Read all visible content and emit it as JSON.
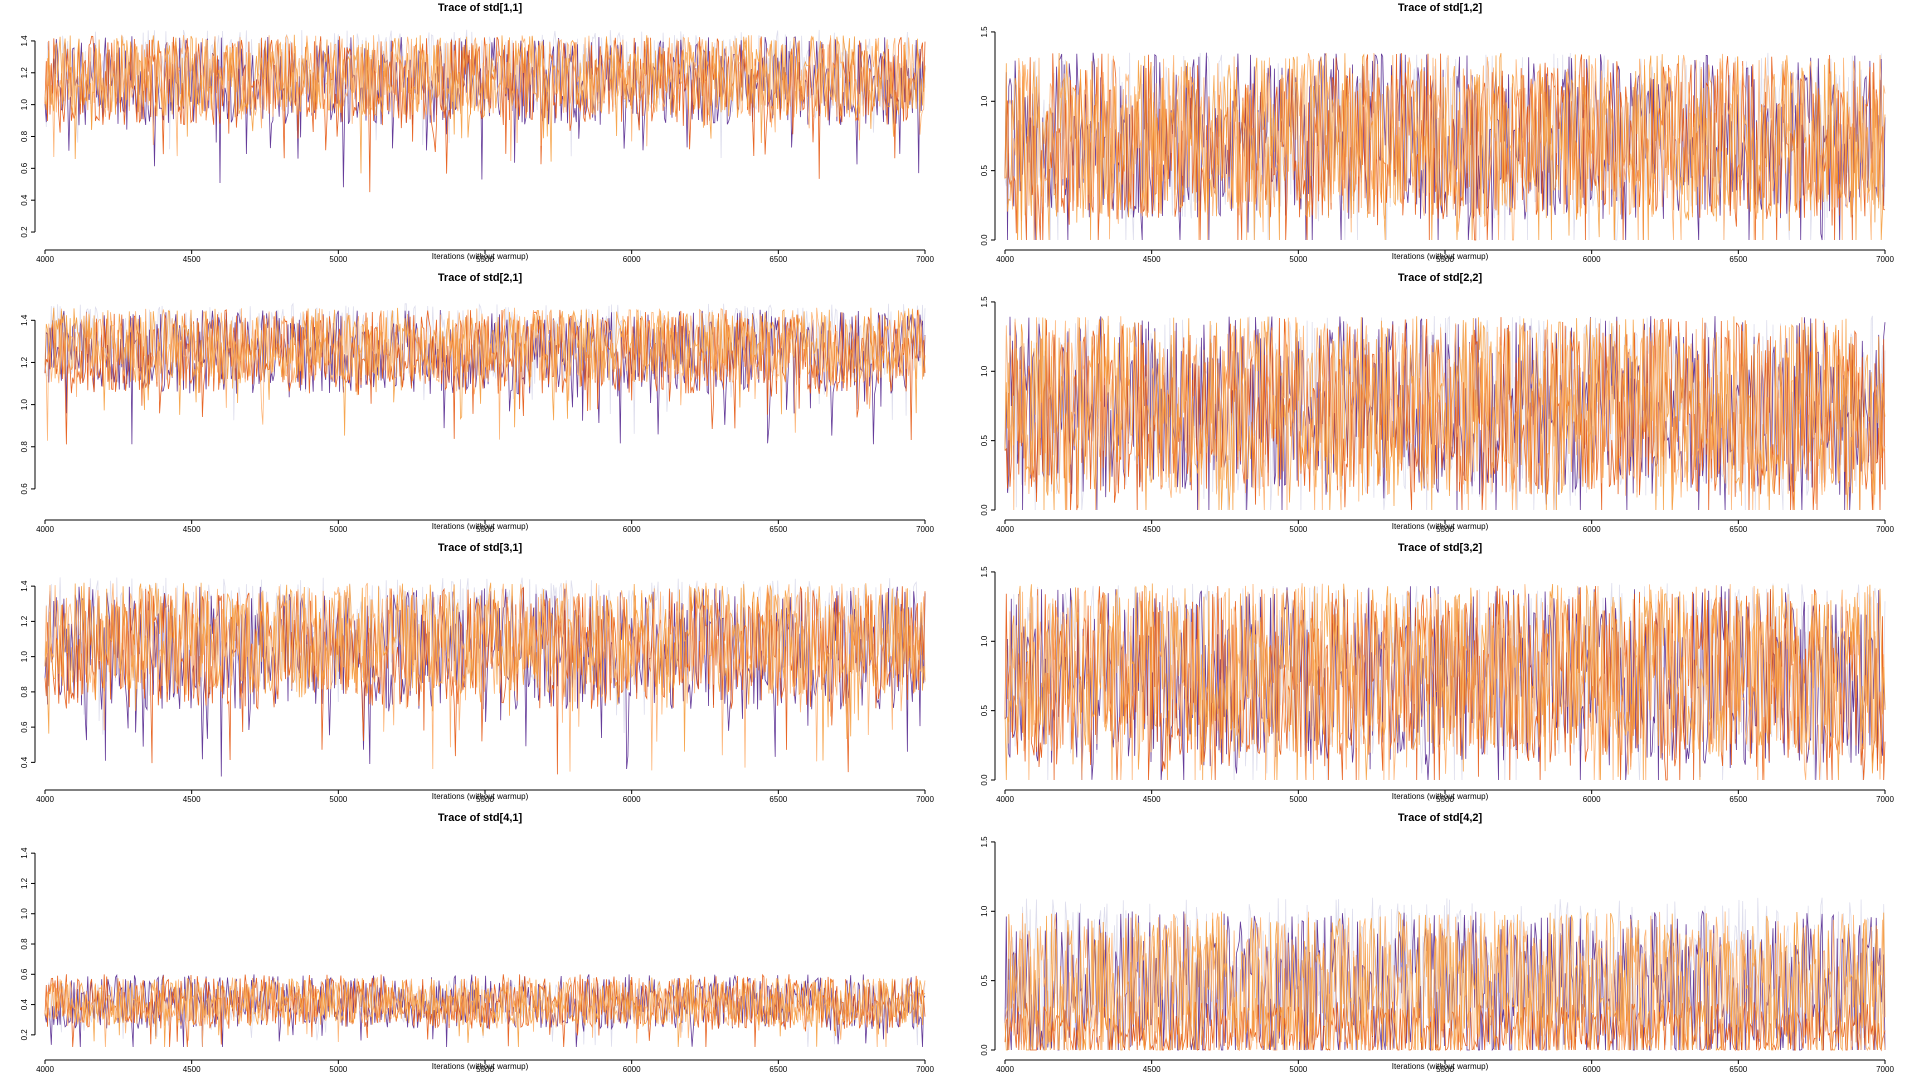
{
  "chart_data": [
    {
      "type": "line",
      "title": "Trace of  std[1,1]",
      "xlabel": "Iterations (without warmup)",
      "ylabel": "",
      "xlim": [
        4000,
        7000
      ],
      "ylim": [
        0.15,
        1.5
      ],
      "xticks": [
        4000,
        4500,
        5000,
        5500,
        6000,
        6500,
        7000
      ],
      "yticks": [
        0.2,
        0.4,
        0.6,
        0.8,
        1.0,
        1.2,
        1.4
      ],
      "ytick_labels": [
        "0.2",
        "0.4",
        "0.6",
        "0.8",
        "1.0",
        "1.2",
        "1.4"
      ],
      "series": [
        {
          "color": "#dadaeb",
          "mean": 1.22,
          "spread": 0.25,
          "min": 0.2,
          "seed": 11
        },
        {
          "color": "#54278f",
          "mean": 1.15,
          "spread": 0.28,
          "min": 0.2,
          "seed": 12
        },
        {
          "color": "#e6550d",
          "mean": 1.15,
          "spread": 0.28,
          "min": 0.2,
          "seed": 13
        },
        {
          "color": "#fdae6b",
          "mean": 1.18,
          "spread": 0.26,
          "min": 0.2,
          "seed": 14
        },
        {
          "color": "#f59c3c",
          "mean": 1.18,
          "spread": 0.26,
          "min": 0.2,
          "seed": 15
        }
      ]
    },
    {
      "type": "line",
      "title": "Trace of  std[1,2]",
      "xlabel": "Iterations (without warmup)",
      "ylabel": "",
      "xlim": [
        4000,
        7000
      ],
      "ylim": [
        0.0,
        1.55
      ],
      "xticks": [
        4000,
        4500,
        5000,
        5500,
        6000,
        6500,
        7000
      ],
      "yticks": [
        0.0,
        0.5,
        1.0,
        1.5
      ],
      "ytick_labels": [
        "0.0",
        "0.5",
        "1.0",
        "1.5"
      ],
      "series": [
        {
          "color": "#dadaeb",
          "mean": 0.75,
          "spread": 0.6,
          "min": 0.0,
          "seed": 21
        },
        {
          "color": "#54278f",
          "mean": 0.75,
          "spread": 0.6,
          "min": 0.0,
          "seed": 22
        },
        {
          "color": "#e6550d",
          "mean": 0.75,
          "spread": 0.6,
          "min": 0.0,
          "seed": 23
        },
        {
          "color": "#fdae6b",
          "mean": 0.75,
          "spread": 0.6,
          "min": 0.0,
          "seed": 24
        },
        {
          "color": "#f59c3c",
          "mean": 0.75,
          "spread": 0.6,
          "min": 0.0,
          "seed": 25
        }
      ]
    },
    {
      "type": "line",
      "title": "Trace of  std[2,1]",
      "xlabel": "Iterations (without warmup)",
      "ylabel": "",
      "xlim": [
        4000,
        7000
      ],
      "ylim": [
        0.5,
        1.52
      ],
      "xticks": [
        4000,
        4500,
        5000,
        5500,
        6000,
        6500,
        7000
      ],
      "yticks": [
        0.6,
        0.8,
        1.0,
        1.2,
        1.4
      ],
      "ytick_labels": [
        "0.6",
        "0.8",
        "1.0",
        "1.2",
        "1.4"
      ],
      "series": [
        {
          "color": "#dadaeb",
          "mean": 1.3,
          "spread": 0.18,
          "min": 0.55,
          "seed": 31
        },
        {
          "color": "#54278f",
          "mean": 1.25,
          "spread": 0.2,
          "min": 0.55,
          "seed": 32
        },
        {
          "color": "#e6550d",
          "mean": 1.25,
          "spread": 0.2,
          "min": 0.55,
          "seed": 33
        },
        {
          "color": "#fdae6b",
          "mean": 1.28,
          "spread": 0.18,
          "min": 0.55,
          "seed": 34
        },
        {
          "color": "#f59c3c",
          "mean": 1.28,
          "spread": 0.18,
          "min": 0.55,
          "seed": 35
        }
      ]
    },
    {
      "type": "line",
      "title": "Trace of  std[2,2]",
      "xlabel": "Iterations (without warmup)",
      "ylabel": "",
      "xlim": [
        4000,
        7000
      ],
      "ylim": [
        0.0,
        1.55
      ],
      "xticks": [
        4000,
        4500,
        5000,
        5500,
        6000,
        6500,
        7000
      ],
      "yticks": [
        0.0,
        0.5,
        1.0,
        1.5
      ],
      "ytick_labels": [
        "0.0",
        "0.5",
        "1.0",
        "1.5"
      ],
      "series": [
        {
          "color": "#dadaeb",
          "mean": 0.75,
          "spread": 0.65,
          "min": 0.0,
          "seed": 41
        },
        {
          "color": "#54278f",
          "mean": 0.75,
          "spread": 0.65,
          "min": 0.0,
          "seed": 42
        },
        {
          "color": "#e6550d",
          "mean": 0.75,
          "spread": 0.65,
          "min": 0.0,
          "seed": 43
        },
        {
          "color": "#fdae6b",
          "mean": 0.75,
          "spread": 0.65,
          "min": 0.0,
          "seed": 44
        },
        {
          "color": "#f59c3c",
          "mean": 0.75,
          "spread": 0.65,
          "min": 0.0,
          "seed": 45
        }
      ]
    },
    {
      "type": "line",
      "title": "Trace of  std[3,1]",
      "xlabel": "Iterations (without warmup)",
      "ylabel": "",
      "xlim": [
        4000,
        7000
      ],
      "ylim": [
        0.3,
        1.52
      ],
      "xticks": [
        4000,
        4500,
        5000,
        5500,
        6000,
        6500,
        7000
      ],
      "yticks": [
        0.4,
        0.6,
        0.8,
        1.0,
        1.2,
        1.4
      ],
      "ytick_labels": [
        "0.4",
        "0.6",
        "0.8",
        "1.0",
        "1.2",
        "1.4"
      ],
      "series": [
        {
          "color": "#dadaeb",
          "mean": 1.15,
          "spread": 0.3,
          "min": 0.32,
          "seed": 51
        },
        {
          "color": "#54278f",
          "mean": 1.05,
          "spread": 0.35,
          "min": 0.32,
          "seed": 52
        },
        {
          "color": "#e6550d",
          "mean": 1.05,
          "spread": 0.35,
          "min": 0.32,
          "seed": 53
        },
        {
          "color": "#fdae6b",
          "mean": 1.1,
          "spread": 0.32,
          "min": 0.32,
          "seed": 54
        },
        {
          "color": "#f59c3c",
          "mean": 1.1,
          "spread": 0.32,
          "min": 0.32,
          "seed": 55
        }
      ]
    },
    {
      "type": "line",
      "title": "Trace of  std[3,2]",
      "xlabel": "Iterations (without warmup)",
      "ylabel": "",
      "xlim": [
        4000,
        7000
      ],
      "ylim": [
        0.0,
        1.55
      ],
      "xticks": [
        4000,
        4500,
        5000,
        5500,
        6000,
        6500,
        7000
      ],
      "yticks": [
        0.0,
        0.5,
        1.0,
        1.5
      ],
      "ytick_labels": [
        "0.0",
        "0.5",
        "1.0",
        "1.5"
      ],
      "series": [
        {
          "color": "#dadaeb",
          "mean": 0.8,
          "spread": 0.62,
          "min": 0.0,
          "seed": 61
        },
        {
          "color": "#54278f",
          "mean": 0.75,
          "spread": 0.65,
          "min": 0.0,
          "seed": 62
        },
        {
          "color": "#e6550d",
          "mean": 0.75,
          "spread": 0.65,
          "min": 0.0,
          "seed": 63
        },
        {
          "color": "#fdae6b",
          "mean": 0.8,
          "spread": 0.62,
          "min": 0.0,
          "seed": 64
        },
        {
          "color": "#f59c3c",
          "mean": 0.8,
          "spread": 0.62,
          "min": 0.0,
          "seed": 65
        }
      ]
    },
    {
      "type": "line",
      "title": "Trace of  std[4,1]",
      "xlabel": "Iterations (without warmup)",
      "ylabel": "",
      "xlim": [
        4000,
        7000
      ],
      "ylim": [
        0.1,
        1.52
      ],
      "xticks": [
        4000,
        4500,
        5000,
        5500,
        6000,
        6500,
        7000
      ],
      "yticks": [
        0.2,
        0.4,
        0.6,
        0.8,
        1.0,
        1.2,
        1.4
      ],
      "ytick_labels": [
        "0.2",
        "0.4",
        "0.6",
        "0.8",
        "1.0",
        "1.2",
        "1.4"
      ],
      "series": [
        {
          "color": "#dadaeb",
          "mean": 0.42,
          "spread": 0.14,
          "min": 0.12,
          "seed": 71
        },
        {
          "color": "#54278f",
          "mean": 0.42,
          "spread": 0.18,
          "min": 0.12,
          "seed": 72
        },
        {
          "color": "#e6550d",
          "mean": 0.42,
          "spread": 0.18,
          "min": 0.12,
          "seed": 73
        },
        {
          "color": "#fdae6b",
          "mean": 0.42,
          "spread": 0.16,
          "min": 0.12,
          "seed": 74
        },
        {
          "color": "#f59c3c",
          "mean": 0.42,
          "spread": 0.16,
          "min": 0.12,
          "seed": 75
        }
      ]
    },
    {
      "type": "line",
      "title": "Trace of  std[4,2]",
      "xlabel": "Iterations (without warmup)",
      "ylabel": "",
      "xlim": [
        4000,
        7000
      ],
      "ylim": [
        0.0,
        1.55
      ],
      "xticks": [
        4000,
        4500,
        5000,
        5500,
        6000,
        6500,
        7000
      ],
      "yticks": [
        0.0,
        0.5,
        1.0,
        1.5
      ],
      "ytick_labels": [
        "0.0",
        "0.5",
        "1.0",
        "1.5"
      ],
      "series": [
        {
          "color": "#dadaeb",
          "mean": 0.55,
          "spread": 0.55,
          "min": 0.0,
          "seed": 81
        },
        {
          "color": "#54278f",
          "mean": 0.45,
          "spread": 0.55,
          "min": 0.0,
          "seed": 82
        },
        {
          "color": "#e6550d",
          "mean": 0.15,
          "spread": 0.2,
          "min": 0.0,
          "seed": 83
        },
        {
          "color": "#fdae6b",
          "mean": 0.45,
          "spread": 0.55,
          "min": 0.0,
          "seed": 84
        },
        {
          "color": "#f59c3c",
          "mean": 0.45,
          "spread": 0.55,
          "min": 0.0,
          "seed": 85
        }
      ]
    }
  ]
}
